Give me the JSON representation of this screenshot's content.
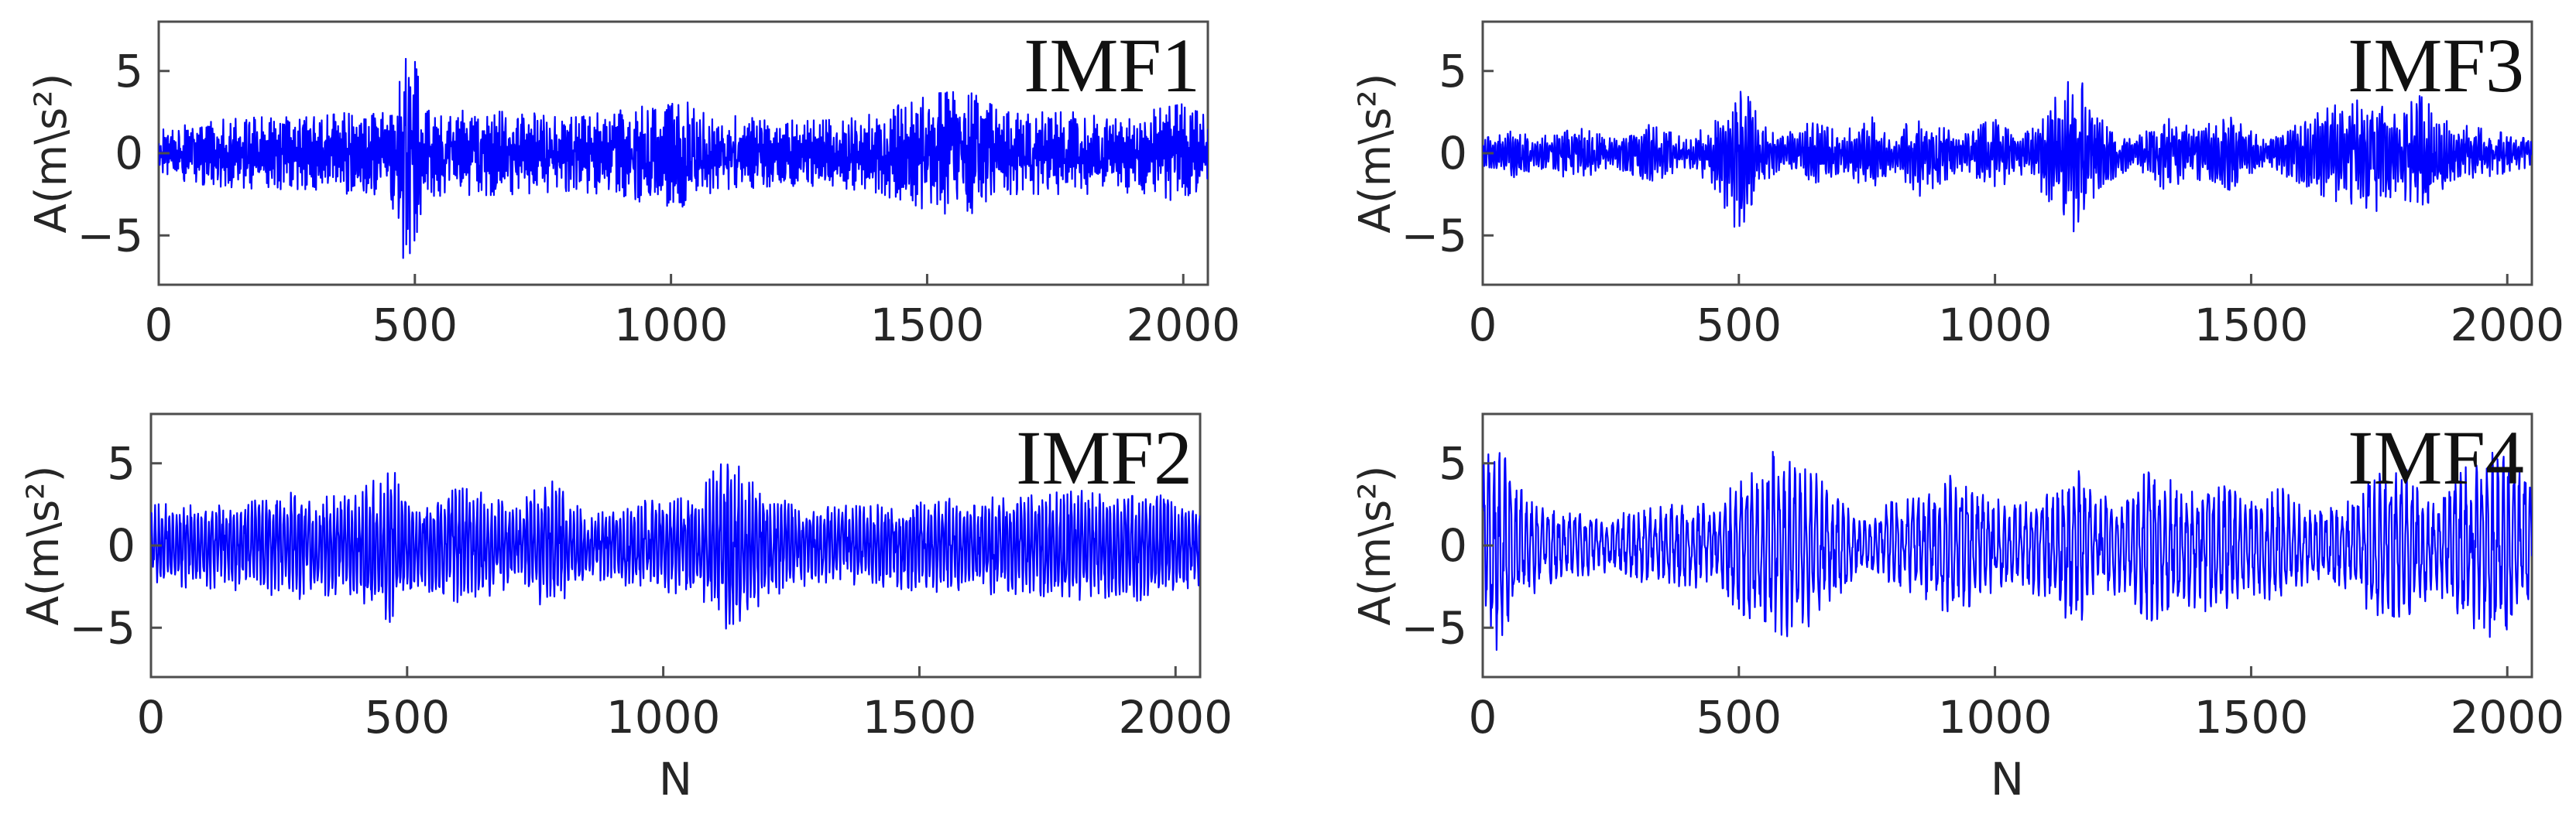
{
  "chart_data": [
    {
      "id": "imf1",
      "type": "line",
      "title": "IMF1",
      "xlabel": "",
      "ylabel": "A(m\\s²)",
      "xlim": [
        0,
        2048
      ],
      "ylim": [
        -8,
        8
      ],
      "xticks": [
        0,
        500,
        1000,
        1500,
        2000
      ],
      "yticks": [
        -5,
        0,
        5
      ],
      "color": "#0000ff",
      "n_points": 2048,
      "envelope": [
        [
          0,
          1.4
        ],
        [
          100,
          2.0
        ],
        [
          200,
          2.2
        ],
        [
          300,
          2.2
        ],
        [
          400,
          2.6
        ],
        [
          450,
          2.4
        ],
        [
          470,
          5.8
        ],
        [
          480,
          6.6
        ],
        [
          500,
          5.6
        ],
        [
          520,
          2.6
        ],
        [
          600,
          2.6
        ],
        [
          700,
          2.5
        ],
        [
          800,
          2.3
        ],
        [
          900,
          2.6
        ],
        [
          1000,
          3.5
        ],
        [
          1030,
          3.4
        ],
        [
          1060,
          2.5
        ],
        [
          1200,
          2.0
        ],
        [
          1300,
          2.0
        ],
        [
          1400,
          2.4
        ],
        [
          1500,
          3.6
        ],
        [
          1580,
          3.8
        ],
        [
          1650,
          2.5
        ],
        [
          1800,
          2.5
        ],
        [
          1900,
          2.4
        ],
        [
          2000,
          3.0
        ],
        [
          2048,
          2.2
        ]
      ]
    },
    {
      "id": "imf2",
      "type": "line",
      "title": "IMF2",
      "xlabel": "N",
      "ylabel": "A(m\\s²)",
      "xlim": [
        0,
        2048
      ],
      "ylim": [
        -8,
        8
      ],
      "xticks": [
        0,
        500,
        1000,
        1500,
        2000
      ],
      "yticks": [
        -5,
        0,
        5
      ],
      "color": "#0000ff",
      "n_points": 2048,
      "envelope": [
        [
          0,
          2.5
        ],
        [
          100,
          2.6
        ],
        [
          200,
          2.8
        ],
        [
          280,
          3.3
        ],
        [
          360,
          3.0
        ],
        [
          470,
          4.8
        ],
        [
          520,
          2.6
        ],
        [
          630,
          3.8
        ],
        [
          700,
          2.5
        ],
        [
          780,
          4.0
        ],
        [
          850,
          2.0
        ],
        [
          1000,
          3.0
        ],
        [
          1060,
          2.8
        ],
        [
          1130,
          6.0
        ],
        [
          1170,
          4.0
        ],
        [
          1250,
          2.5
        ],
        [
          1400,
          2.4
        ],
        [
          1500,
          2.8
        ],
        [
          1600,
          2.9
        ],
        [
          1700,
          3.1
        ],
        [
          1800,
          3.3
        ],
        [
          1900,
          3.5
        ],
        [
          2000,
          3.0
        ],
        [
          2048,
          2.8
        ]
      ]
    },
    {
      "id": "imf3",
      "type": "line",
      "title": "IMF3",
      "xlabel": "",
      "ylabel": "A(m\\s²)",
      "xlim": [
        0,
        2048
      ],
      "ylim": [
        -8,
        8
      ],
      "xticks": [
        0,
        500,
        1000,
        1500,
        2000
      ],
      "yticks": [
        -5,
        0,
        5
      ],
      "color": "#0000ff",
      "n_points": 2048,
      "envelope": [
        [
          0,
          0.9
        ],
        [
          60,
          1.5
        ],
        [
          100,
          1.0
        ],
        [
          180,
          1.6
        ],
        [
          260,
          0.9
        ],
        [
          330,
          1.8
        ],
        [
          400,
          0.8
        ],
        [
          450,
          2.0
        ],
        [
          500,
          5.0
        ],
        [
          540,
          2.0
        ],
        [
          580,
          1.0
        ],
        [
          640,
          1.9
        ],
        [
          700,
          1.3
        ],
        [
          760,
          2.2
        ],
        [
          800,
          1.0
        ],
        [
          860,
          2.8
        ],
        [
          930,
          1.0
        ],
        [
          1000,
          2.2
        ],
        [
          1060,
          1.2
        ],
        [
          1160,
          5.0
        ],
        [
          1200,
          2.2
        ],
        [
          1270,
          0.8
        ],
        [
          1330,
          2.2
        ],
        [
          1390,
          1.5
        ],
        [
          1450,
          2.4
        ],
        [
          1530,
          0.7
        ],
        [
          1600,
          2.0
        ],
        [
          1660,
          2.9
        ],
        [
          1700,
          3.1
        ],
        [
          1740,
          3.8
        ],
        [
          1780,
          2.4
        ],
        [
          1830,
          3.5
        ],
        [
          1880,
          2.0
        ],
        [
          1950,
          1.5
        ],
        [
          2000,
          1.2
        ],
        [
          2048,
          0.8
        ]
      ]
    },
    {
      "id": "imf4",
      "type": "line",
      "title": "IMF4",
      "xlabel": "N",
      "ylabel": "A(m\\s²)",
      "xlim": [
        0,
        2048
      ],
      "ylim": [
        -8,
        8
      ],
      "xticks": [
        0,
        500,
        1000,
        1500,
        2000
      ],
      "yticks": [
        -5,
        0,
        5
      ],
      "color": "#0000ff",
      "n_points": 2048,
      "envelope": [
        [
          0,
          5.0
        ],
        [
          30,
          6.5
        ],
        [
          70,
          3.5
        ],
        [
          150,
          2.0
        ],
        [
          250,
          1.8
        ],
        [
          320,
          2.3
        ],
        [
          400,
          2.6
        ],
        [
          450,
          2.5
        ],
        [
          500,
          4.0
        ],
        [
          570,
          5.8
        ],
        [
          640,
          5.0
        ],
        [
          700,
          3.0
        ],
        [
          750,
          1.5
        ],
        [
          800,
          2.8
        ],
        [
          860,
          3.2
        ],
        [
          920,
          4.4
        ],
        [
          980,
          3.0
        ],
        [
          1050,
          2.5
        ],
        [
          1100,
          3.4
        ],
        [
          1160,
          5.0
        ],
        [
          1200,
          3.0
        ],
        [
          1260,
          3.0
        ],
        [
          1300,
          5.2
        ],
        [
          1360,
          3.5
        ],
        [
          1430,
          4.2
        ],
        [
          1500,
          3.0
        ],
        [
          1560,
          3.5
        ],
        [
          1620,
          2.0
        ],
        [
          1680,
          2.5
        ],
        [
          1740,
          4.4
        ],
        [
          1800,
          4.7
        ],
        [
          1860,
          3.0
        ],
        [
          1920,
          4.8
        ],
        [
          1980,
          5.8
        ],
        [
          2020,
          5.0
        ],
        [
          2048,
          4.0
        ]
      ]
    }
  ]
}
